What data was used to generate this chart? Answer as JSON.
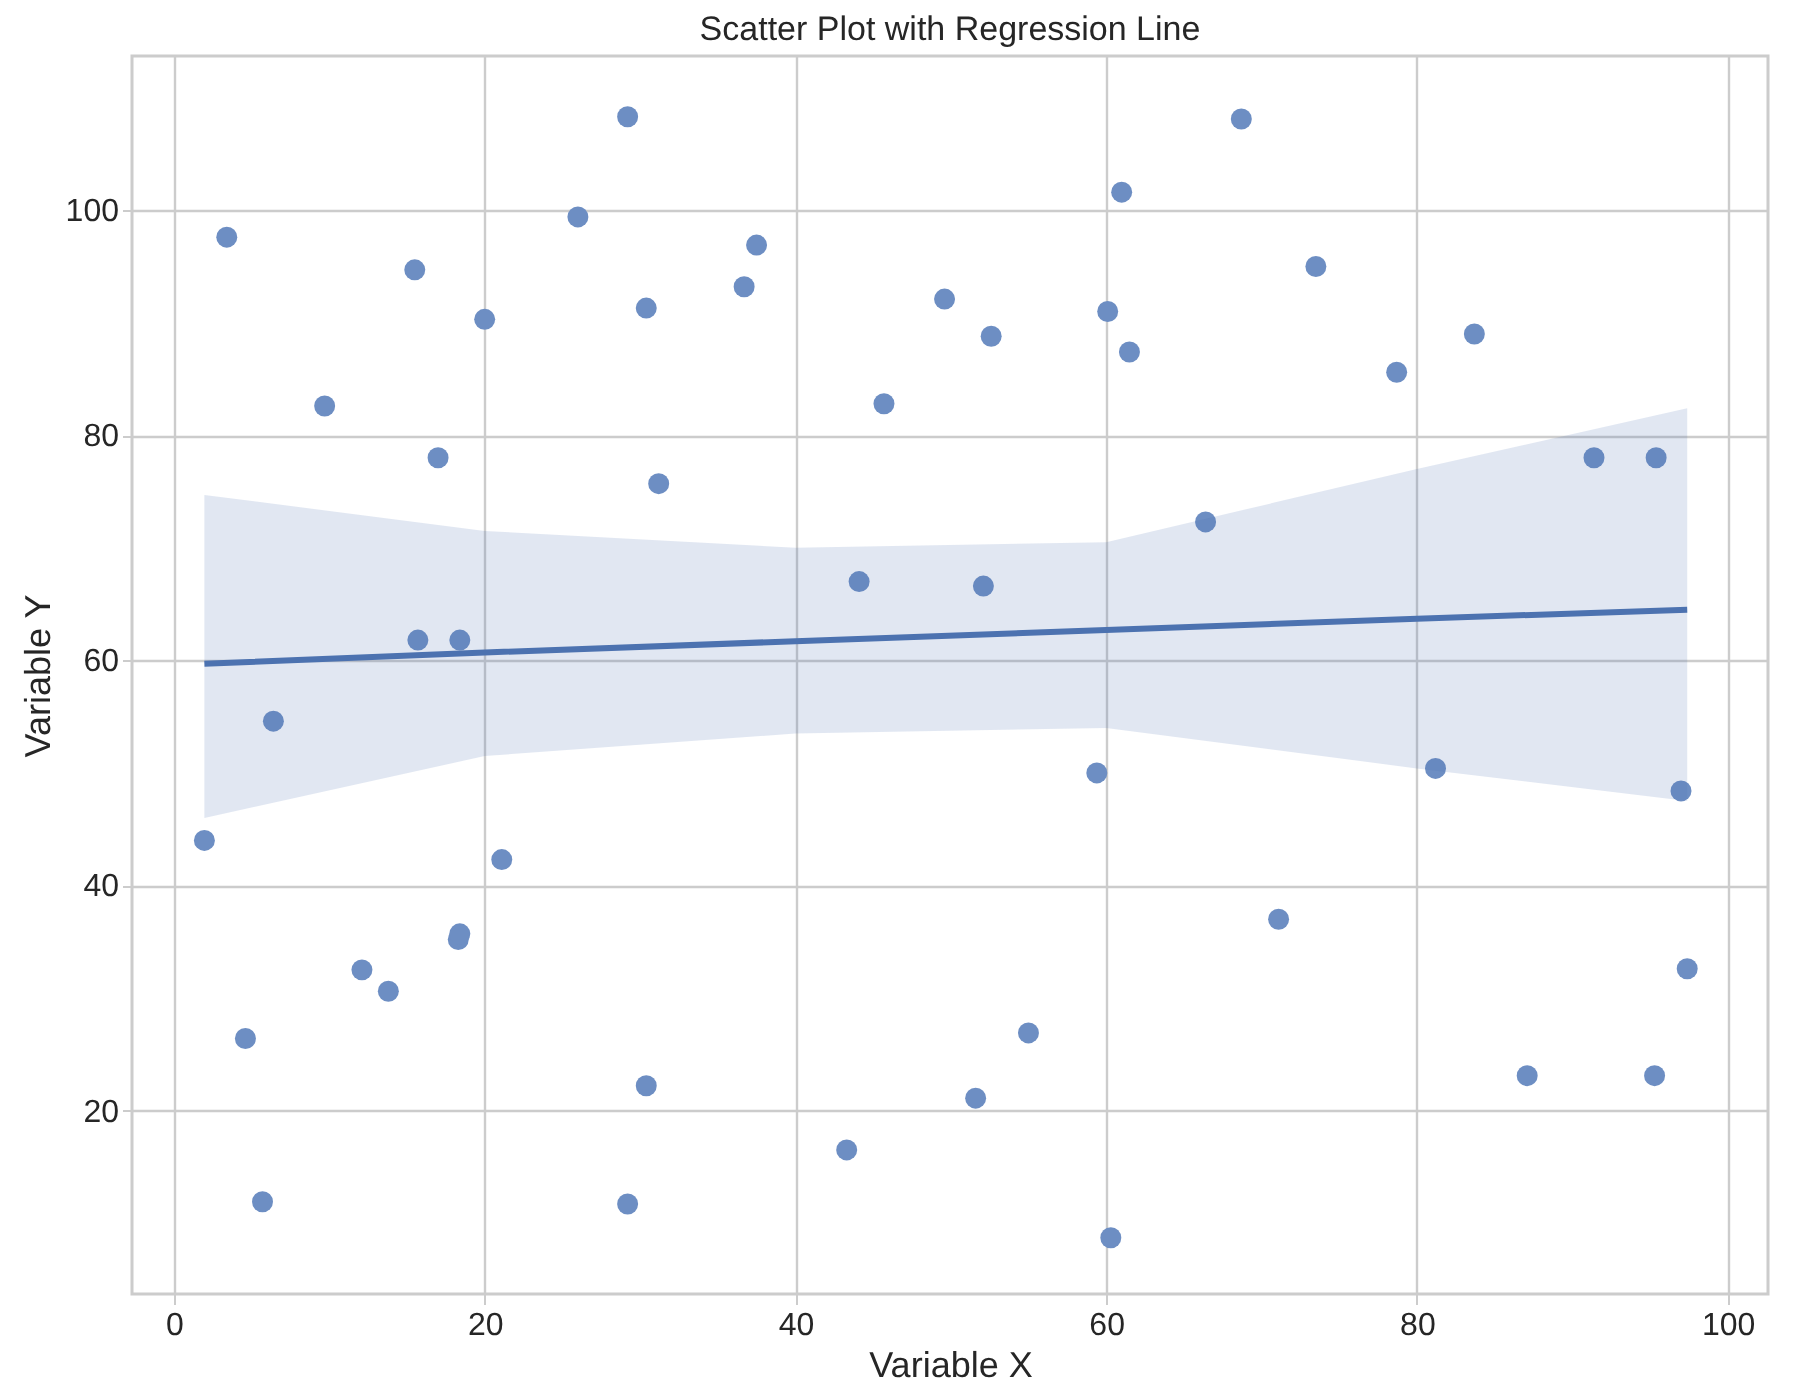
{
  "chart_data": {
    "type": "scatter",
    "title": "Scatter Plot with Regression Line",
    "xlabel": "Variable X",
    "ylabel": "Variable Y",
    "xlim": [
      -2.7,
      102.6
    ],
    "ylim": [
      3.7,
      113.7
    ],
    "xticks": [
      0,
      20,
      40,
      60,
      80,
      100
    ],
    "yticks": [
      20,
      40,
      60,
      80,
      100
    ],
    "grid": true,
    "marker": "circle",
    "series": [
      {
        "color": "#6d8ec3",
        "x": [
          1.96,
          3.4,
          4.6,
          5.7,
          6.4,
          9.7,
          12.1,
          13.8,
          15.5,
          15.7,
          17.0,
          18.3,
          18.4,
          18.4,
          20.0,
          21.1,
          26.0,
          29.2,
          29.2,
          30.4,
          30.4,
          31.2,
          36.7,
          37.5,
          43.3,
          44.1,
          45.7,
          49.6,
          51.6,
          52.1,
          52.6,
          55.0,
          59.4,
          60.1,
          60.3,
          61.0,
          61.5,
          66.4,
          68.7,
          71.1,
          73.5,
          78.7,
          81.2,
          83.7,
          87.1,
          91.4,
          95.4,
          95.3,
          97.0,
          97.4
        ],
        "values": [
          44.0,
          97.6,
          26.4,
          11.9,
          54.6,
          82.6,
          32.5,
          30.6,
          94.7,
          61.8,
          78.0,
          35.2,
          35.7,
          61.8,
          90.3,
          42.3,
          99.4,
          108.3,
          11.7,
          91.3,
          22.2,
          75.7,
          93.2,
          96.9,
          16.5,
          67.0,
          82.8,
          92.1,
          21.1,
          66.6,
          88.8,
          26.9,
          50.0,
          91.0,
          8.7,
          101.6,
          87.4,
          72.3,
          108.1,
          37.0,
          95.0,
          85.6,
          50.4,
          89.0,
          23.1,
          78.0,
          78.0,
          23.1,
          48.4,
          32.6
        ]
      },
      {
        "type": "line",
        "color": "#4c72b0",
        "line_style": "solid",
        "marker": "none",
        "x": [
          1.96,
          20,
          40,
          60,
          80,
          97.4
        ],
        "values": [
          59.7,
          60.7,
          61.7,
          62.7,
          63.7,
          64.5
        ],
        "lower": [
          46.0,
          51.5,
          53.5,
          54.0,
          50.4,
          47.5
        ],
        "upper": [
          74.7,
          71.5,
          70.0,
          70.5,
          77.0,
          82.4
        ]
      }
    ]
  }
}
